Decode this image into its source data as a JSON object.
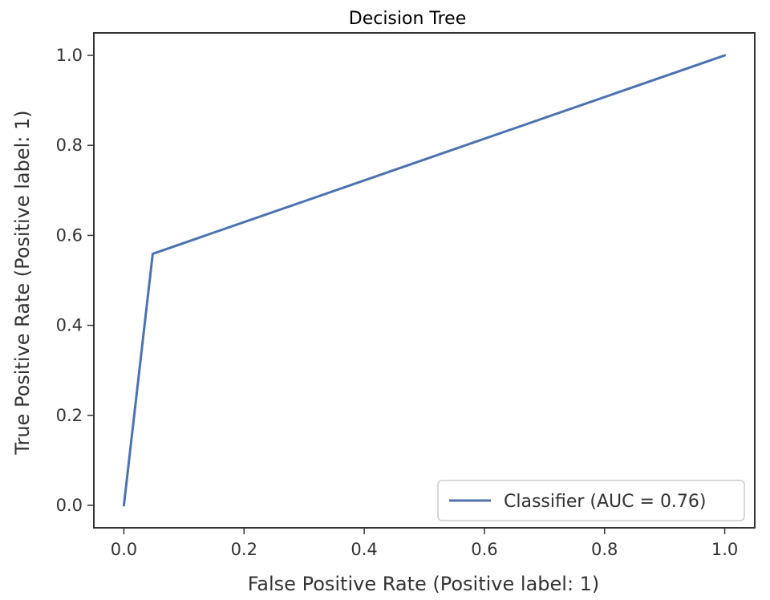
{
  "chart_data": {
    "type": "line",
    "title": "Decision Tree",
    "xlabel": "False Positive Rate (Positive label: 1)",
    "ylabel": "True Positive Rate (Positive label: 1)",
    "xlim": [
      -0.05,
      1.05
    ],
    "ylim": [
      -0.05,
      1.05
    ],
    "xticks": [
      "0.0",
      "0.2",
      "0.4",
      "0.6",
      "0.8",
      "1.0"
    ],
    "yticks": [
      "0.0",
      "0.2",
      "0.4",
      "0.6",
      "0.8",
      "1.0"
    ],
    "grid": false,
    "legend_position": "lower-right",
    "series": [
      {
        "name": "Classifier (AUC = 0.76)",
        "color": "#4c72b0",
        "x": [
          0.0,
          0.048,
          1.0
        ],
        "y": [
          0.0,
          0.559,
          1.0
        ]
      }
    ]
  }
}
